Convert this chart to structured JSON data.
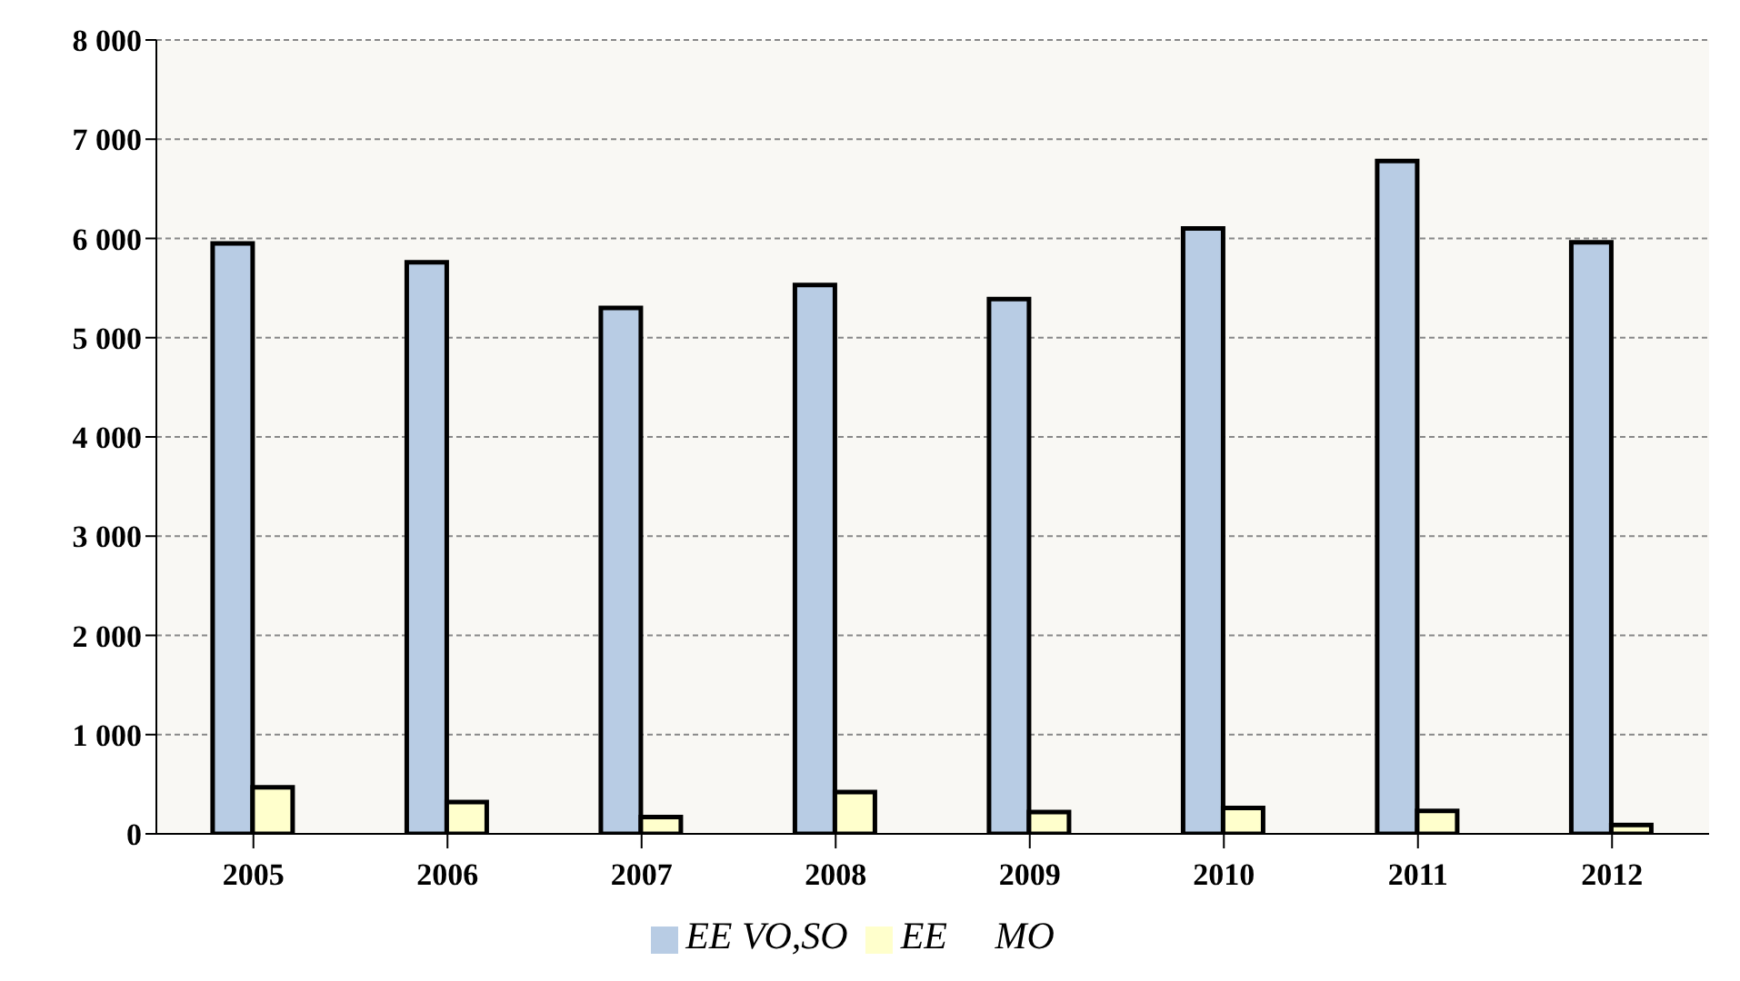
{
  "chart_data": {
    "type": "bar",
    "categories": [
      "2005",
      "2006",
      "2007",
      "2008",
      "2009",
      "2010",
      "2011",
      "2012"
    ],
    "series": [
      {
        "name": "EE VO,SO",
        "color": "#b8cce4",
        "values": [
          5950,
          5760,
          5300,
          5530,
          5390,
          6100,
          6780,
          5960
        ]
      },
      {
        "name": "EE     MO",
        "color": "#ffffcc",
        "values": [
          470,
          320,
          170,
          420,
          220,
          260,
          230,
          90
        ]
      }
    ],
    "ylim": [
      0,
      8000
    ],
    "yticks": [
      0,
      {
        "value": 1000,
        "label": "1 000"
      },
      {
        "value": 2000,
        "label": "2 000"
      },
      {
        "value": 3000,
        "label": "3 000"
      },
      {
        "value": 4000,
        "label": "4 000"
      },
      {
        "value": 5000,
        "label": "5 000"
      },
      {
        "value": 6000,
        "label": "6 000"
      },
      {
        "value": 7000,
        "label": "7 000"
      },
      {
        "value": 8000,
        "label": "8 000"
      }
    ],
    "grid": "y",
    "legend": "bottom"
  }
}
